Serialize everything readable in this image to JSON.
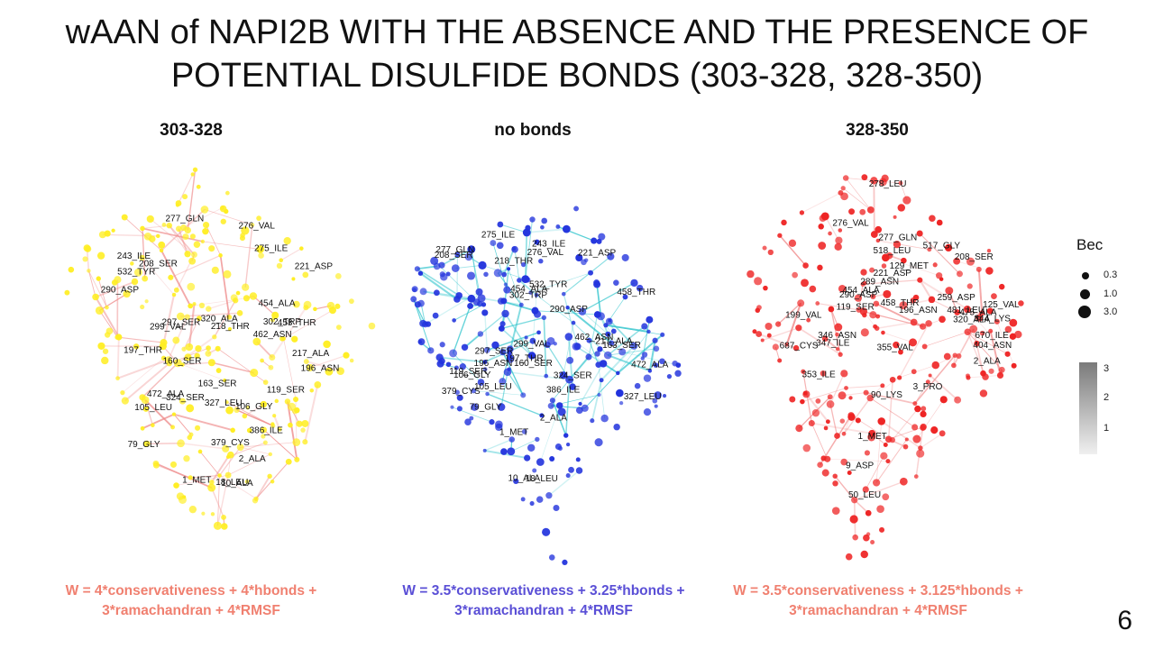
{
  "title": {
    "line1": "wAAN of NAPI2B WITH THE ABSENCE AND THE PRESENCE OF",
    "line2": "POTENTIAL DISULFIDE BONDS (303-328, 328-350)"
  },
  "panels": [
    {
      "label": "303-328",
      "node_color": "#ffee22",
      "edge_color": "#ee8a8a",
      "formula_line1": "W = 4*conservativeness + 4*hbonds +",
      "formula_line2": "3*ramachandran + 4*RMSF",
      "formula_color": "#f08070",
      "residues": [
        "277_GLN",
        "276_VAL",
        "275_ILE",
        "243_ILE",
        "208_SER",
        "221_ASP",
        "532_TYR",
        "290_ASP",
        "454_ALA",
        "320_ALA",
        "302_TRP",
        "297_SER",
        "458_THR",
        "218_THR",
        "299_VAL",
        "462_ASN",
        "197_THR",
        "217_ALA",
        "160_SER",
        "196_ASN",
        "163_SER",
        "119_SER",
        "472_ALA",
        "324_SER",
        "327_LEU",
        "106_GLY",
        "105_LEU",
        "386_ILE",
        "379_CYS",
        "79_GLY",
        "2_ALA",
        "1_MET",
        "18_LEU",
        "10_ALA"
      ]
    },
    {
      "label": "no bonds",
      "node_color": "#2233dd",
      "edge_color": "#2ec4cc",
      "formula_line1": "W = 3.5*conservativeness + 3.25*hbonds +",
      "formula_line2": "3*ramachandran + 4*RMSF",
      "formula_color": "#5a4fd6",
      "residues": [
        "275_ILE",
        "243_ILE",
        "277_GLN",
        "276_VAL",
        "221_ASP",
        "208_SER",
        "218_THR",
        "532_TYR",
        "454_ALA",
        "458_THR",
        "302_TRP",
        "290_ASP",
        "462_ASN",
        "217_ALA",
        "299_VAL",
        "163_SER",
        "297_SER",
        "197_THR",
        "196_ASN",
        "160_SER",
        "472_ALA",
        "119_SER",
        "106_GLY",
        "324_SER",
        "105_LEU",
        "386_ILE",
        "379_CYS",
        "327_LEU",
        "79_GLY",
        "2_ALA",
        "1_MET",
        "10_ALA",
        "18_LEU"
      ]
    },
    {
      "label": "328-350",
      "node_color": "#ee2222",
      "edge_color": "#f08888",
      "formula_line1": "W = 3.5*conservativeness + 3.125*hbonds +",
      "formula_line2": "3*ramachandran + 4*RMSF",
      "formula_color": "#f08070",
      "residues": [
        "278_LEU",
        "276_VAL",
        "277_GLN",
        "517_GLY",
        "518_LEU",
        "208_SER",
        "129_MET",
        "221_ASP",
        "289_ASN",
        "454_ALA",
        "290_ASP",
        "259_ASP",
        "458_THR",
        "125_VAL",
        "119_SER",
        "481_LEU",
        "196_ASN",
        "475_ALA",
        "199_VAL",
        "344_LYS",
        "320_ALA",
        "346_ASN",
        "670_ILE",
        "347_ILE",
        "404_ASN",
        "687_CYS",
        "355_VAL",
        "2_ALA",
        "353_ILE",
        "3_PRO",
        "90_LYS",
        "1_MET",
        "9_ASP",
        "50_LEU"
      ]
    }
  ],
  "legend": {
    "title": "Bec",
    "sizes": [
      "0.3",
      "1.0",
      "3.0"
    ],
    "colorbar_ticks": [
      "3",
      "2",
      "1"
    ]
  },
  "page_number": "6"
}
